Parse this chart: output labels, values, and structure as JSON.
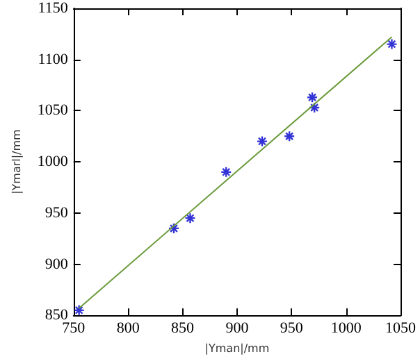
{
  "chart_data": {
    "type": "scatter",
    "xlabel": "|Yman|/mm",
    "ylabel": "|Ymarl|/mm",
    "xlim": [
      750,
      1050
    ],
    "xticks": [
      750,
      800,
      850,
      900,
      950,
      1000,
      1050
    ],
    "ylim": [
      850,
      1150
    ],
    "yticks": [
      850,
      900,
      950,
      1000,
      1050,
      1100,
      1150
    ],
    "grid": false,
    "series": [
      {
        "color": "#0000cc",
        "marker": "cross",
        "x": [
          755,
          842,
          857,
          890,
          923,
          948,
          969,
          971,
          1042
        ],
        "values": [
          855,
          935,
          945,
          990,
          1020,
          1025,
          1063,
          1053,
          1115
        ]
      },
      {
        "type": "line",
        "color": "#6a9a3a",
        "marker": "none",
        "x": [
          755,
          1042
        ],
        "values": [
          857,
          1122
        ]
      }
    ]
  }
}
